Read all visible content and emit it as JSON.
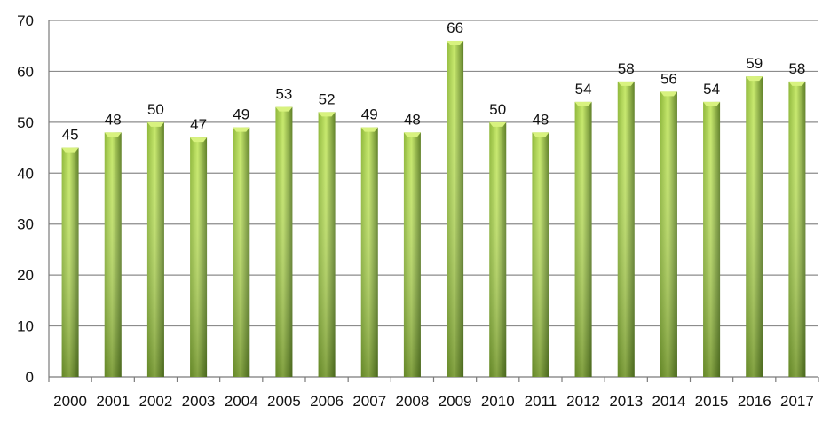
{
  "chart_data": {
    "type": "bar",
    "categories": [
      "2000",
      "2001",
      "2002",
      "2003",
      "2004",
      "2005",
      "2006",
      "2007",
      "2008",
      "2009",
      "2010",
      "2011",
      "2012",
      "2013",
      "2014",
      "2015",
      "2016",
      "2017"
    ],
    "values": [
      45,
      48,
      50,
      47,
      49,
      53,
      52,
      49,
      48,
      66,
      50,
      48,
      54,
      58,
      56,
      54,
      59,
      58
    ],
    "ylim": [
      0,
      70
    ],
    "yticks": [
      0,
      10,
      20,
      30,
      40,
      50,
      60,
      70
    ],
    "grid": true,
    "legend": "none",
    "colors": {
      "bar_dark": "#5e7f26",
      "bar_mid": "#8fb83a",
      "bar_light": "#c6e86a",
      "bar_top": "#d8f27f"
    }
  }
}
